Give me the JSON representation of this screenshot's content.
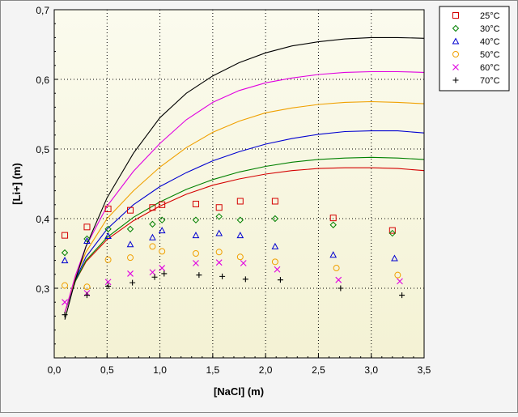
{
  "chart_data": {
    "type": "scatter",
    "title": "",
    "xlabel": "[NaCl] (m)",
    "ylabel": "[Li+] (m)",
    "xlim": [
      0,
      3.5
    ],
    "ylim": [
      0.2,
      0.7
    ],
    "x_ticks": [
      "0,0",
      "0,5",
      "1,0",
      "1,5",
      "2,0",
      "2,5",
      "3,0",
      "3,5"
    ],
    "y_ticks": [
      "0,3",
      "0,4",
      "0,5",
      "0,6",
      "0,7"
    ],
    "grid": "dotted",
    "legend_position": "top-right",
    "series": [
      {
        "name": "25°C",
        "marker": "square",
        "color": "#d40000",
        "points": [
          [
            0.1,
            0.376
          ],
          [
            0.31,
            0.388
          ],
          [
            0.51,
            0.414
          ],
          [
            0.72,
            0.412
          ],
          [
            0.93,
            0.416
          ],
          [
            1.02,
            0.42
          ],
          [
            1.34,
            0.421
          ],
          [
            1.56,
            0.416
          ],
          [
            1.76,
            0.425
          ],
          [
            2.09,
            0.425
          ],
          [
            2.64,
            0.401
          ],
          [
            3.2,
            0.383
          ]
        ],
        "curve": [
          [
            0.1,
            0.265
          ],
          [
            0.2,
            0.31
          ],
          [
            0.3,
            0.338
          ],
          [
            0.5,
            0.37
          ],
          [
            0.75,
            0.397
          ],
          [
            1.0,
            0.418
          ],
          [
            1.25,
            0.435
          ],
          [
            1.5,
            0.448
          ],
          [
            1.75,
            0.457
          ],
          [
            2.0,
            0.464
          ],
          [
            2.25,
            0.469
          ],
          [
            2.5,
            0.472
          ],
          [
            2.75,
            0.473
          ],
          [
            3.0,
            0.473
          ],
          [
            3.25,
            0.472
          ],
          [
            3.5,
            0.469
          ]
        ]
      },
      {
        "name": "30°C",
        "marker": "diamond",
        "color": "#008000",
        "points": [
          [
            0.1,
            0.351
          ],
          [
            0.31,
            0.371
          ],
          [
            0.51,
            0.385
          ],
          [
            0.72,
            0.385
          ],
          [
            0.93,
            0.392
          ],
          [
            1.02,
            0.398
          ],
          [
            1.34,
            0.398
          ],
          [
            1.56,
            0.403
          ],
          [
            1.76,
            0.398
          ],
          [
            2.09,
            0.4
          ],
          [
            2.64,
            0.391
          ],
          [
            3.2,
            0.379
          ]
        ],
        "curve": [
          [
            0.1,
            0.265
          ],
          [
            0.2,
            0.31
          ],
          [
            0.3,
            0.34
          ],
          [
            0.5,
            0.373
          ],
          [
            0.75,
            0.402
          ],
          [
            1.0,
            0.424
          ],
          [
            1.25,
            0.442
          ],
          [
            1.5,
            0.456
          ],
          [
            1.75,
            0.467
          ],
          [
            2.0,
            0.475
          ],
          [
            2.25,
            0.481
          ],
          [
            2.5,
            0.485
          ],
          [
            2.75,
            0.487
          ],
          [
            3.0,
            0.488
          ],
          [
            3.25,
            0.487
          ],
          [
            3.5,
            0.485
          ]
        ]
      },
      {
        "name": "40°C",
        "marker": "triangle",
        "color": "#0000d0",
        "points": [
          [
            0.1,
            0.34
          ],
          [
            0.31,
            0.368
          ],
          [
            0.51,
            0.375
          ],
          [
            0.72,
            0.363
          ],
          [
            0.93,
            0.373
          ],
          [
            1.02,
            0.383
          ],
          [
            1.34,
            0.376
          ],
          [
            1.56,
            0.379
          ],
          [
            1.76,
            0.376
          ],
          [
            2.09,
            0.36
          ],
          [
            2.64,
            0.348
          ],
          [
            3.22,
            0.343
          ]
        ],
        "curve": [
          [
            0.1,
            0.265
          ],
          [
            0.2,
            0.312
          ],
          [
            0.3,
            0.345
          ],
          [
            0.5,
            0.385
          ],
          [
            0.75,
            0.42
          ],
          [
            1.0,
            0.446
          ],
          [
            1.25,
            0.466
          ],
          [
            1.5,
            0.483
          ],
          [
            1.75,
            0.496
          ],
          [
            2.0,
            0.507
          ],
          [
            2.25,
            0.515
          ],
          [
            2.5,
            0.521
          ],
          [
            2.75,
            0.525
          ],
          [
            3.0,
            0.526
          ],
          [
            3.25,
            0.526
          ],
          [
            3.5,
            0.523
          ]
        ]
      },
      {
        "name": "50°C",
        "marker": "circle",
        "color": "#f0a000",
        "points": [
          [
            0.1,
            0.304
          ],
          [
            0.31,
            0.302
          ],
          [
            0.51,
            0.341
          ],
          [
            0.72,
            0.344
          ],
          [
            0.93,
            0.36
          ],
          [
            1.02,
            0.353
          ],
          [
            1.34,
            0.35
          ],
          [
            1.56,
            0.352
          ],
          [
            1.76,
            0.345
          ],
          [
            2.09,
            0.338
          ],
          [
            2.67,
            0.329
          ],
          [
            3.25,
            0.319
          ]
        ],
        "curve": [
          [
            0.1,
            0.265
          ],
          [
            0.2,
            0.315
          ],
          [
            0.3,
            0.352
          ],
          [
            0.5,
            0.4
          ],
          [
            0.75,
            0.44
          ],
          [
            1.0,
            0.474
          ],
          [
            1.25,
            0.502
          ],
          [
            1.5,
            0.524
          ],
          [
            1.75,
            0.54
          ],
          [
            2.0,
            0.552
          ],
          [
            2.25,
            0.559
          ],
          [
            2.5,
            0.564
          ],
          [
            2.75,
            0.567
          ],
          [
            3.0,
            0.568
          ],
          [
            3.25,
            0.567
          ],
          [
            3.5,
            0.565
          ]
        ]
      },
      {
        "name": "60°C",
        "marker": "x",
        "color": "#e000e0",
        "points": [
          [
            0.1,
            0.28
          ],
          [
            0.31,
            0.293
          ],
          [
            0.51,
            0.309
          ],
          [
            0.72,
            0.321
          ],
          [
            0.93,
            0.323
          ],
          [
            1.02,
            0.329
          ],
          [
            1.34,
            0.336
          ],
          [
            1.56,
            0.337
          ],
          [
            1.79,
            0.336
          ],
          [
            2.11,
            0.327
          ],
          [
            2.69,
            0.312
          ],
          [
            3.27,
            0.31
          ]
        ],
        "curve": [
          [
            0.1,
            0.265
          ],
          [
            0.2,
            0.318
          ],
          [
            0.3,
            0.36
          ],
          [
            0.5,
            0.418
          ],
          [
            0.75,
            0.468
          ],
          [
            1.0,
            0.508
          ],
          [
            1.25,
            0.542
          ],
          [
            1.5,
            0.567
          ],
          [
            1.75,
            0.584
          ],
          [
            2.0,
            0.595
          ],
          [
            2.25,
            0.602
          ],
          [
            2.5,
            0.607
          ],
          [
            2.75,
            0.61
          ],
          [
            3.0,
            0.611
          ],
          [
            3.25,
            0.611
          ],
          [
            3.5,
            0.61
          ]
        ]
      },
      {
        "name": "70°C",
        "marker": "plus",
        "color": "#000000",
        "points": [
          [
            0.1,
            0.262
          ],
          [
            0.31,
            0.29
          ],
          [
            0.51,
            0.303
          ],
          [
            0.74,
            0.308
          ],
          [
            0.95,
            0.316
          ],
          [
            1.04,
            0.321
          ],
          [
            1.37,
            0.319
          ],
          [
            1.59,
            0.317
          ],
          [
            1.81,
            0.313
          ],
          [
            2.14,
            0.312
          ],
          [
            2.71,
            0.3
          ],
          [
            3.29,
            0.29
          ]
        ],
        "curve": [
          [
            0.1,
            0.255
          ],
          [
            0.2,
            0.312
          ],
          [
            0.3,
            0.36
          ],
          [
            0.5,
            0.43
          ],
          [
            0.75,
            0.494
          ],
          [
            1.0,
            0.545
          ],
          [
            1.25,
            0.58
          ],
          [
            1.5,
            0.605
          ],
          [
            1.75,
            0.624
          ],
          [
            2.0,
            0.638
          ],
          [
            2.25,
            0.648
          ],
          [
            2.5,
            0.654
          ],
          [
            2.75,
            0.658
          ],
          [
            3.0,
            0.66
          ],
          [
            3.25,
            0.66
          ],
          [
            3.5,
            0.659
          ]
        ]
      }
    ]
  }
}
